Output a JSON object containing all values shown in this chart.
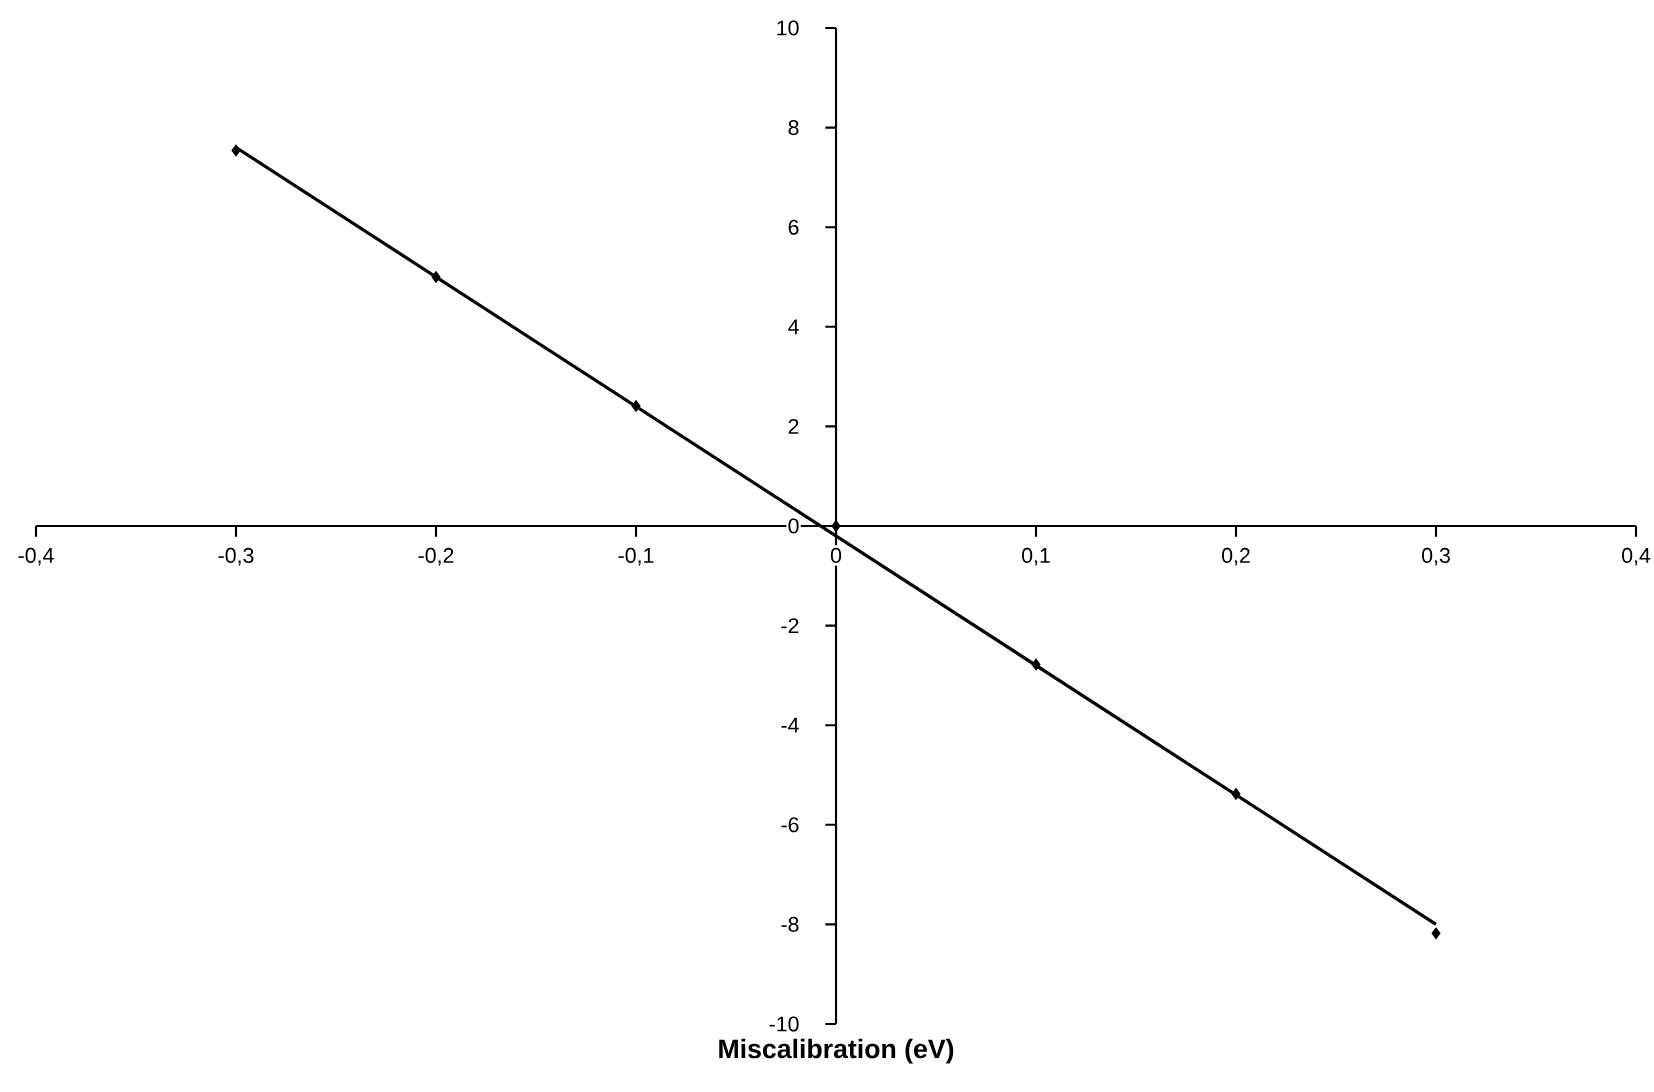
{
  "chart_data": {
    "type": "scatter",
    "xlabel": "**Miscalibration (eV)**",
    "xlim": [
      -0.4,
      0.4
    ],
    "ylim": [
      -10,
      10
    ],
    "xticks": [
      {
        "value": -0.4,
        "label": "-0,4"
      },
      {
        "value": -0.3,
        "label": "-0,3"
      },
      {
        "value": -0.2,
        "label": "-0,2"
      },
      {
        "value": -0.1,
        "label": "-0,1"
      },
      {
        "value": 0,
        "label": "0"
      },
      {
        "value": 0.1,
        "label": "0,1"
      },
      {
        "value": 0.2,
        "label": "0,2"
      },
      {
        "value": 0.3,
        "label": "0,3"
      },
      {
        "value": 0.4,
        "label": "0,4"
      }
    ],
    "yticks": [
      -10,
      -8,
      -6,
      -4,
      -2,
      0,
      2,
      4,
      6,
      8,
      10
    ],
    "x": [
      -0.3,
      -0.2,
      -0.1,
      0,
      0.1,
      0.2,
      0.3
    ],
    "grid": false,
    "series": [
      {
        "color": "#000000",
        "marker": "diamond",
        "values": [
          7.54,
          5.0,
          2.41,
          0.0,
          -2.78,
          -5.38,
          -8.18
        ]
      },
      {
        "type": "line",
        "color": "#000000",
        "marker": "none",
        "line_style": "solid",
        "x": [
          -0.3,
          0.3
        ],
        "values": [
          7.6,
          -8.0
        ]
      }
    ]
  }
}
